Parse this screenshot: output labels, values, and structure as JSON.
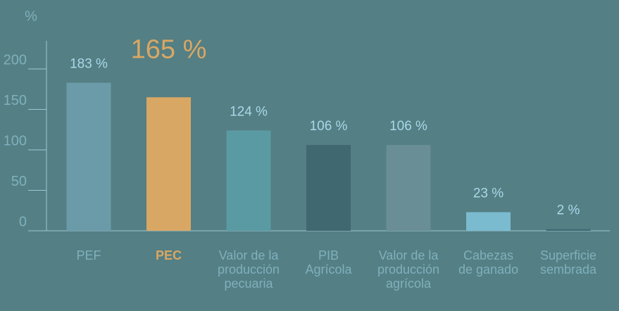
{
  "chart_data": {
    "type": "bar",
    "ylabel": "%",
    "categories": [
      "PEF",
      "PEC",
      "Valor de la\nproducción\npecuaria",
      "PIB\nAgrícola",
      "Valor de la\nproducción\nagrícola",
      "Cabezas\nde ganado",
      "Superficie\nsembrada"
    ],
    "values": [
      183,
      165,
      124,
      106,
      106,
      23,
      2
    ],
    "value_labels": [
      "183 %",
      "165 %",
      "124 %",
      "106 %",
      "106 %",
      "23 %",
      "2 %"
    ],
    "colors": [
      "#6b9ba8",
      "#d9a764",
      "#5a9aa3",
      "#3f6870",
      "#6a8e96",
      "#7bbbd0",
      "#3f6870"
    ],
    "highlight": 1,
    "ylim": [
      0,
      200
    ],
    "yticks": [
      0,
      50,
      100,
      150,
      200
    ]
  }
}
